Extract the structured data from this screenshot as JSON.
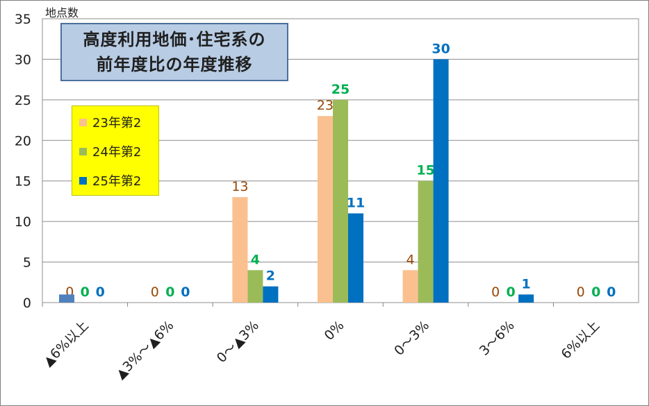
{
  "chart_data": {
    "type": "bar",
    "title": "高度利用地価･住宅系の前年度比の年度推移",
    "title_lines": [
      "高度利用地価･住宅系の",
      "前年度比の年度推移"
    ],
    "ylabel": "地点数",
    "xlabel": "",
    "ylim": [
      0,
      35
    ],
    "yticks": [
      0,
      5,
      10,
      15,
      20,
      25,
      30,
      35
    ],
    "grid": true,
    "legend_placement": "top-left",
    "categories": [
      "▲6%以上",
      "▲3%～▲6%",
      "0～▲3%",
      "0%",
      "0～3%",
      "3～6%",
      "6%以上"
    ],
    "series": [
      {
        "name": "23年第2",
        "color": "#fac090",
        "label_color": "#984807",
        "label_bold": false,
        "values": [
          0,
          0,
          13,
          23,
          4,
          0,
          0
        ]
      },
      {
        "name": "24年第2",
        "color": "#9bbb59",
        "label_color": "#00b050",
        "label_bold": true,
        "values": [
          0,
          0,
          4,
          25,
          15,
          0,
          0
        ]
      },
      {
        "name": "25年第2",
        "color": "#0070c0",
        "label_color": "#0070c0",
        "label_bold": true,
        "values": [
          0,
          0,
          2,
          11,
          30,
          1,
          0
        ]
      }
    ],
    "extra_bar": {
      "category_index": 0,
      "value": 1,
      "color": "#4f81bd"
    }
  }
}
